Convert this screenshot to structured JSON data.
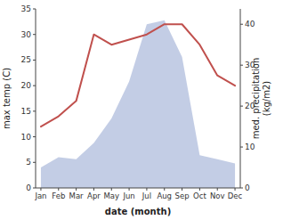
{
  "chart_data": {
    "type": "line",
    "xlabel": "date (month)",
    "ylabel": "max temp (C)",
    "y2label": "med. precipitation\n(kg/m2)",
    "categories": [
      "Jan",
      "Feb",
      "Mar",
      "Apr",
      "May",
      "Jun",
      "Jul",
      "Aug",
      "Sep",
      "Oct",
      "Nov",
      "Dec"
    ],
    "series": [
      {
        "type": "area",
        "axis": "y2",
        "color": "#b8c4e0",
        "values": [
          5,
          7.5,
          7,
          11,
          17,
          26,
          40,
          41,
          32,
          8,
          7,
          6
        ]
      },
      {
        "type": "line",
        "color": "#c0504d",
        "values": [
          12,
          14,
          17,
          30,
          28,
          29,
          30,
          32,
          32,
          28,
          22,
          20
        ]
      }
    ],
    "ylim": [
      0,
      35
    ],
    "yticks": [
      0,
      5,
      10,
      15,
      20,
      25,
      30,
      35
    ],
    "y2lim": [
      0,
      43.75
    ],
    "y2ticks": [
      0,
      10,
      20,
      30,
      40
    ]
  }
}
